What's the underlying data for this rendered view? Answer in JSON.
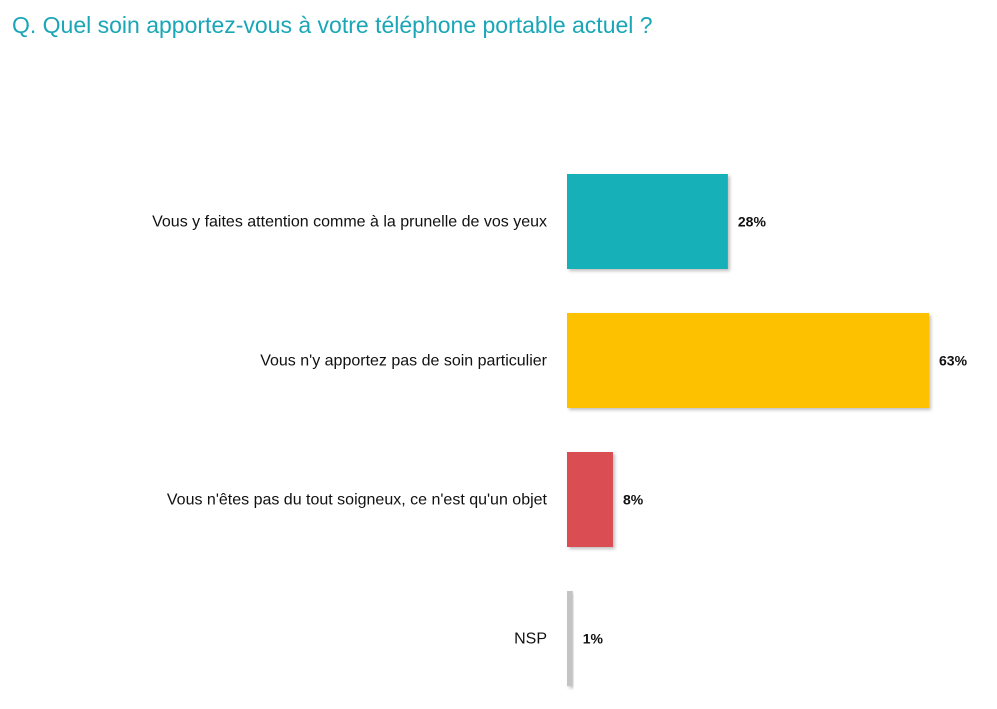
{
  "title": "Q. Quel soin apportez-vous à votre téléphone portable actuel ?",
  "chart_data": {
    "type": "bar",
    "orientation": "horizontal",
    "title": "Q. Quel soin apportez-vous à votre téléphone portable actuel ?",
    "xlabel": "",
    "ylabel": "",
    "categories": [
      "Vous y faites attention comme à la prunelle de vos yeux",
      "Vous n'y apportez pas de soin particulier",
      "Vous n'êtes pas du tout soigneux, ce n'est qu'un objet",
      "NSP"
    ],
    "values": [
      28,
      63,
      8,
      1
    ],
    "value_labels": [
      "28%",
      "63%",
      "8%",
      "1%"
    ],
    "colors": [
      "#19b0b9",
      "#fdc100",
      "#d94e52",
      "#c4c4c4"
    ],
    "xlim": [
      0,
      63
    ],
    "grid": false,
    "legend": "none"
  }
}
